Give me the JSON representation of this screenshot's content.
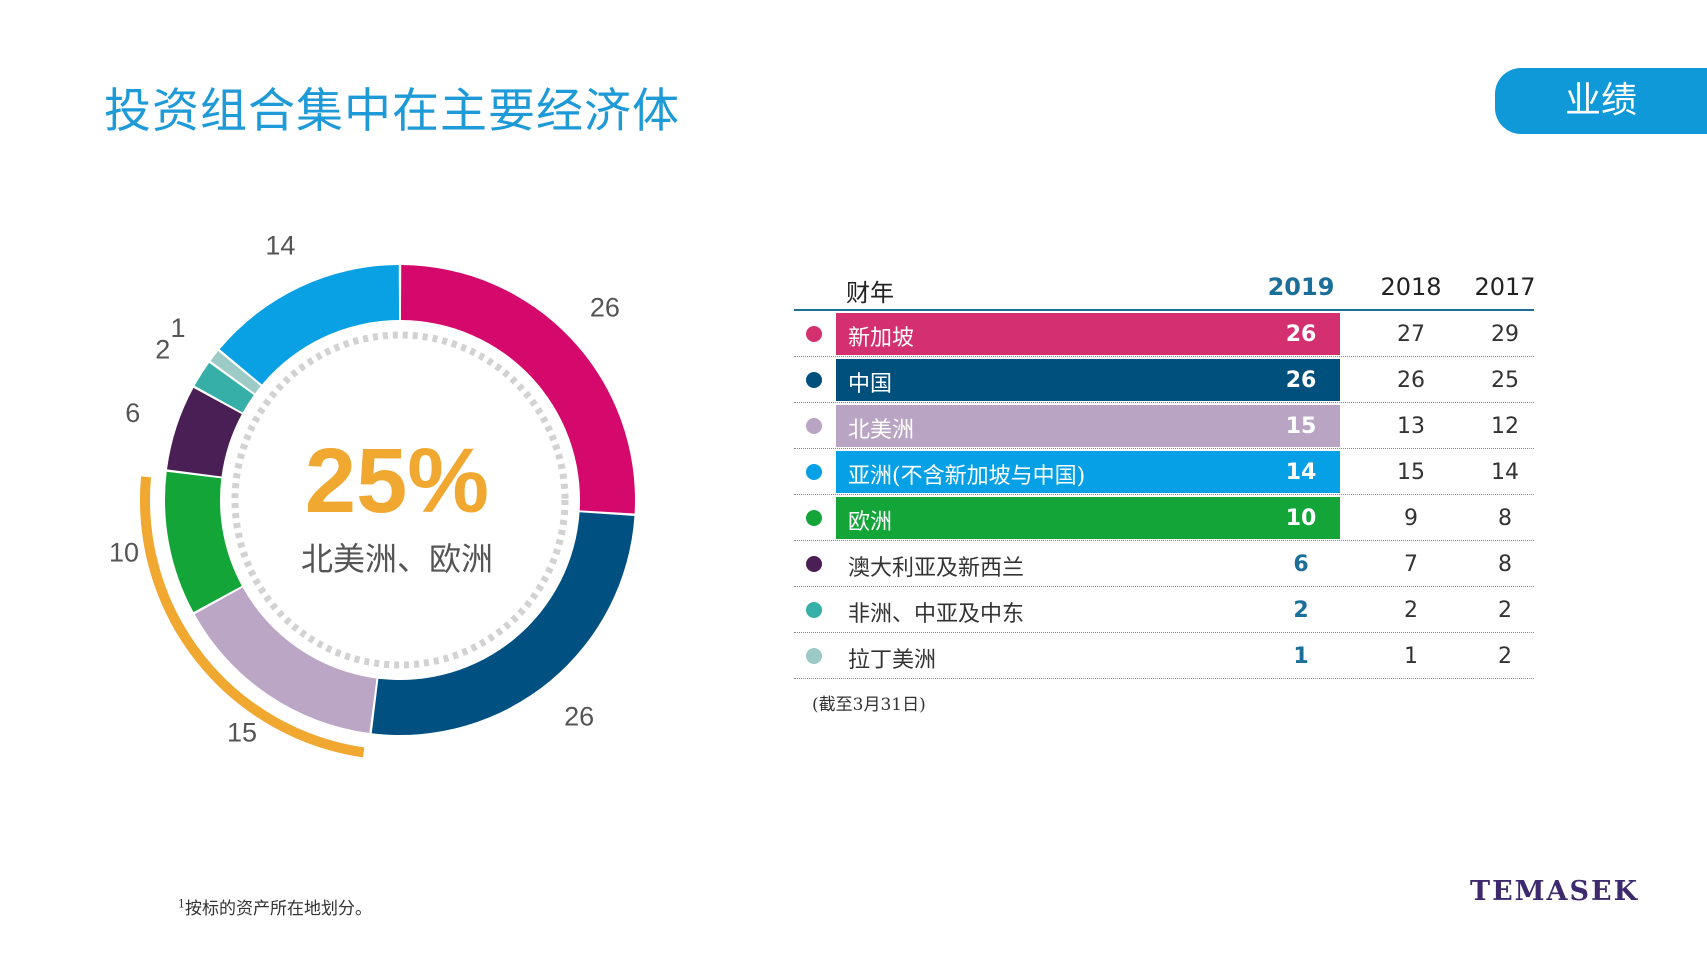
{
  "page": {
    "title": "投资组合集中在主要经济体",
    "tag": "业绩",
    "note": "(截至3月31日)",
    "footnote_mark": "1",
    "footnote": "按标的资产所在地划分。",
    "logo": "TEMASEK"
  },
  "colors": {
    "title": "#1e9ad6",
    "tag": "#0f99d8",
    "highlight": "#f0a830",
    "accent_year": "#1b6f98"
  },
  "chart_data": {
    "type": "donut",
    "center_value": "25%",
    "center_label": "北美洲、欧洲",
    "series": [
      {
        "name": "新加坡",
        "value": 26,
        "color": "#d4096b"
      },
      {
        "name": "中国",
        "value": 26,
        "color": "#005182"
      },
      {
        "name": "北美洲",
        "value": 15,
        "color": "#bba6c6"
      },
      {
        "name": "欧洲",
        "value": 10,
        "color": "#13a538"
      },
      {
        "name": "澳大利亚及新西兰",
        "value": 6,
        "color": "#4a1f55"
      },
      {
        "name": "非洲、中亚及中东",
        "value": 2,
        "color": "#37afa9"
      },
      {
        "name": "拉丁美洲",
        "value": 1,
        "color": "#9ccac6"
      },
      {
        "name": "亚洲(不含新加坡与中国)",
        "value": 14,
        "color": "#0aa0e4"
      }
    ],
    "highlighted": [
      "北美洲",
      "欧洲"
    ]
  },
  "table": {
    "header": {
      "label": "财年",
      "y1": "2019",
      "y2": "2018",
      "y3": "2017"
    },
    "rows": [
      {
        "label": "新加坡",
        "v1": "26",
        "v2": "27",
        "v3": "29",
        "color": "#d4306f",
        "banded": true
      },
      {
        "label": "中国",
        "v1": "26",
        "v2": "26",
        "v3": "25",
        "color": "#00507e",
        "banded": true
      },
      {
        "label": "北美洲",
        "v1": "15",
        "v2": "13",
        "v3": "12",
        "color": "#b9a4c4",
        "banded": true
      },
      {
        "label": "亚洲(不含新加坡与中国)",
        "v1": "14",
        "v2": "15",
        "v3": "14",
        "color": "#06a0e6",
        "banded": true
      },
      {
        "label": "欧洲",
        "v1": "10",
        "v2": "9",
        "v3": "8",
        "color": "#13a538",
        "banded": true
      },
      {
        "label": "澳大利亚及新西兰",
        "v1": "6",
        "v2": "7",
        "v3": "8",
        "color": "#4a1f55",
        "banded": false
      },
      {
        "label": "非洲、中亚及中东",
        "v1": "2",
        "v2": "2",
        "v3": "2",
        "color": "#37afa9",
        "banded": false
      },
      {
        "label": "拉丁美洲",
        "v1": "1",
        "v2": "1",
        "v3": "2",
        "color": "#9ccac6",
        "banded": false
      }
    ]
  }
}
